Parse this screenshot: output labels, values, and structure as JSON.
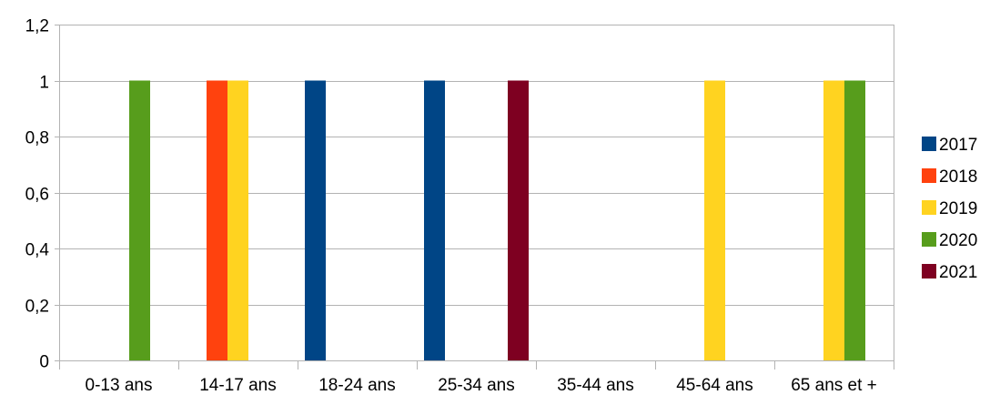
{
  "chart_data": {
    "type": "bar",
    "categories": [
      "0-13 ans",
      "14-17 ans",
      "18-24 ans",
      "25-34 ans",
      "35-44 ans",
      "45-64 ans",
      "65 ans et +"
    ],
    "series": [
      {
        "name": "2017",
        "color": "#004586",
        "values": [
          0,
          0,
          1,
          1,
          0,
          0,
          0
        ]
      },
      {
        "name": "2018",
        "color": "#ff420e",
        "values": [
          0,
          1,
          0,
          0,
          0,
          0,
          0
        ]
      },
      {
        "name": "2019",
        "color": "#ffd320",
        "values": [
          0,
          1,
          0,
          0,
          0,
          1,
          1
        ]
      },
      {
        "name": "2020",
        "color": "#579d1c",
        "values": [
          1,
          0,
          0,
          0,
          0,
          0,
          1
        ]
      },
      {
        "name": "2021",
        "color": "#7e0021",
        "values": [
          0,
          0,
          0,
          1,
          0,
          0,
          0
        ]
      }
    ],
    "yticks": [
      "0",
      "0,2",
      "0,4",
      "0,6",
      "0,8",
      "1",
      "1,2"
    ],
    "ylim": [
      0,
      1.2
    ],
    "grid": true,
    "legend_position": "right"
  }
}
